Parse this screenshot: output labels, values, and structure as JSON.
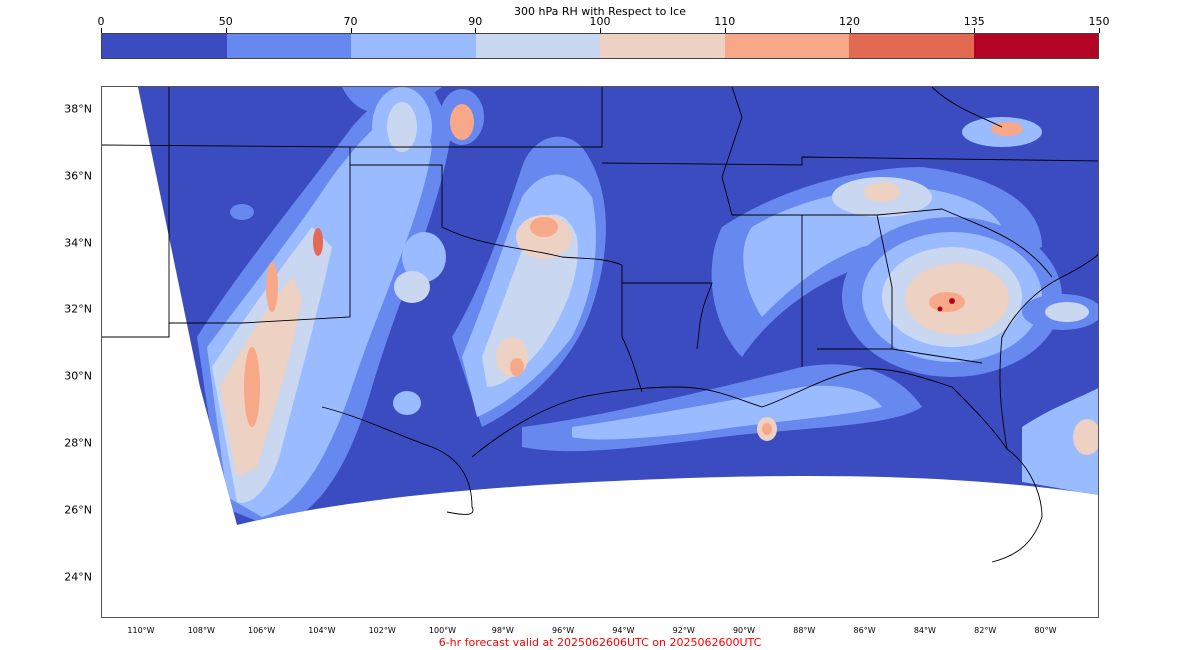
{
  "title": "300 hPa RH with Respect to Ice",
  "colorbar": {
    "ticks": [
      "0",
      "50",
      "70",
      "90",
      "100",
      "110",
      "120",
      "135",
      "150"
    ],
    "colors": [
      "#3a4cc0",
      "#6788ee",
      "#9abbff",
      "#c9d7f0",
      "#edd1c2",
      "#f7a889",
      "#e26952",
      "#b40426"
    ]
  },
  "map": {
    "lat_labels": [
      "38°N",
      "36°N",
      "34°N",
      "32°N",
      "30°N",
      "28°N",
      "26°N",
      "24°N"
    ],
    "lon_labels": [
      "110°W",
      "108°W",
      "106°W",
      "104°W",
      "102°W",
      "100°W",
      "98°W",
      "96°W",
      "94°W",
      "92°W",
      "90°W",
      "88°W",
      "86°W",
      "84°W",
      "82°W",
      "80°W"
    ],
    "field_colors": {
      "lt50": "#3a4cc0",
      "c50_70": "#6788ee",
      "c70_90": "#9abbff",
      "c90_100": "#c9d7f0",
      "c100_110": "#edd1c2",
      "c110_120": "#f7a889",
      "c120_135": "#e26952",
      "c135_150": "#b40426"
    }
  },
  "footer": {
    "text": "6-hr forecast valid at 2025062606UTC on 2025062600UTC",
    "color": "#ff0000"
  }
}
